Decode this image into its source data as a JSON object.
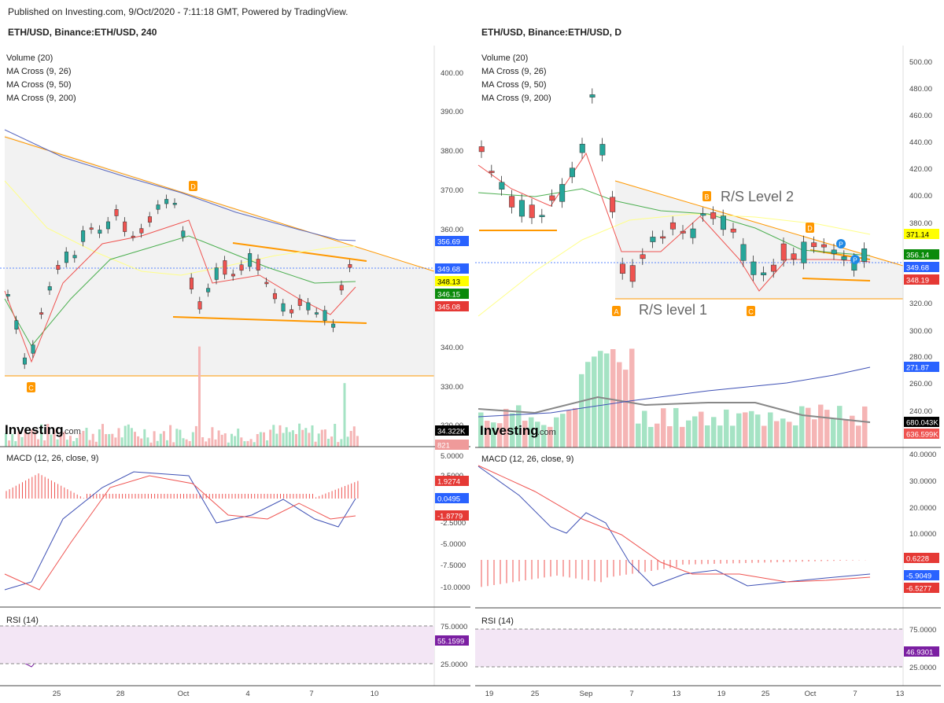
{
  "header": "Published on Investing.com, 9/Oct/2020 - 7:11:18 GMT, Powered by TradingView.",
  "left": {
    "title": "ETH/USD, Binance:ETH/USD, 240",
    "indicators": [
      "Volume (20)",
      "MA Cross (9, 26)",
      "MA Cross (9, 50)",
      "MA Cross (9, 200)"
    ],
    "logo": "Investing",
    "logo_suffix": ".com",
    "price_ticks": [
      "400.00",
      "390.00",
      "380.00",
      "370.00",
      "360.00",
      "340.00",
      "330.00",
      "320.00"
    ],
    "price_tags": [
      {
        "v": "356.69",
        "c": "#2962ff"
      },
      {
        "v": "349.68",
        "c": "#2962ff"
      },
      {
        "v": "348.13",
        "c": "#ffff00"
      },
      {
        "v": "346.15",
        "c": "#0a8a0a"
      },
      {
        "v": "345.08",
        "c": "#e53935"
      },
      {
        "v": "34.322K",
        "c": "#000000"
      },
      {
        "v": "821",
        "c": "#ef9a9a"
      }
    ],
    "macd_label": "MACD (12, 26, close, 9)",
    "macd_ticks": [
      "5.0000",
      "2.5000",
      "-2.5000",
      "-5.0000",
      "-7.5000",
      "-10.0000"
    ],
    "macd_tags": [
      {
        "v": "1.9274",
        "c": "#e53935"
      },
      {
        "v": "0.0495",
        "c": "#2962ff"
      },
      {
        "v": "-1.8779",
        "c": "#e53935"
      }
    ],
    "rsi_label": "RSI (14)",
    "rsi_ticks": [
      "75.0000",
      "25.0000"
    ],
    "rsi_tag": "55.1599",
    "x_ticks": [
      "25",
      "28",
      "Oct",
      "4",
      "7",
      "10"
    ],
    "markers": [
      "D",
      "C"
    ]
  },
  "right": {
    "title": "ETH/USD, Binance:ETH/USD, D",
    "indicators": [
      "Volume (20)",
      "MA Cross (9, 26)",
      "MA Cross (9, 50)",
      "MA Cross (9, 200)"
    ],
    "logo": "Investing",
    "logo_suffix": ".com",
    "price_ticks": [
      "500.00",
      "480.00",
      "460.00",
      "440.00",
      "420.00",
      "400.00",
      "380.00",
      "320.00",
      "300.00",
      "280.00",
      "260.00",
      "240.00"
    ],
    "price_tags": [
      {
        "v": "371.14",
        "c": "#ffff00"
      },
      {
        "v": "356.14",
        "c": "#0a8a0a"
      },
      {
        "v": "349.68",
        "c": "#2962ff"
      },
      {
        "v": "348.19",
        "c": "#e53935"
      },
      {
        "v": "271.87",
        "c": "#2962ff"
      },
      {
        "v": "680.043K",
        "c": "#000000"
      },
      {
        "v": "636.599K",
        "c": "#ef5350"
      }
    ],
    "macd_label": "MACD (12, 26, close, 9)",
    "macd_ticks": [
      "40.0000",
      "30.0000",
      "20.0000",
      "10.0000"
    ],
    "macd_tags": [
      {
        "v": "0.6228",
        "c": "#e53935"
      },
      {
        "v": "-5.9049",
        "c": "#2962ff"
      },
      {
        "v": "-6.5277",
        "c": "#e53935"
      }
    ],
    "rsi_label": "RSI (14)",
    "rsi_ticks": [
      "75.0000",
      "25.0000"
    ],
    "rsi_tag": "46.9301",
    "x_ticks": [
      "19",
      "25",
      "Sep",
      "7",
      "13",
      "19",
      "25",
      "Oct",
      "7",
      "13"
    ],
    "markers": [
      "A",
      "B",
      "C",
      "D",
      "P",
      "P"
    ],
    "annotations": [
      "R/S Level 2",
      "R/S level 1"
    ]
  }
}
